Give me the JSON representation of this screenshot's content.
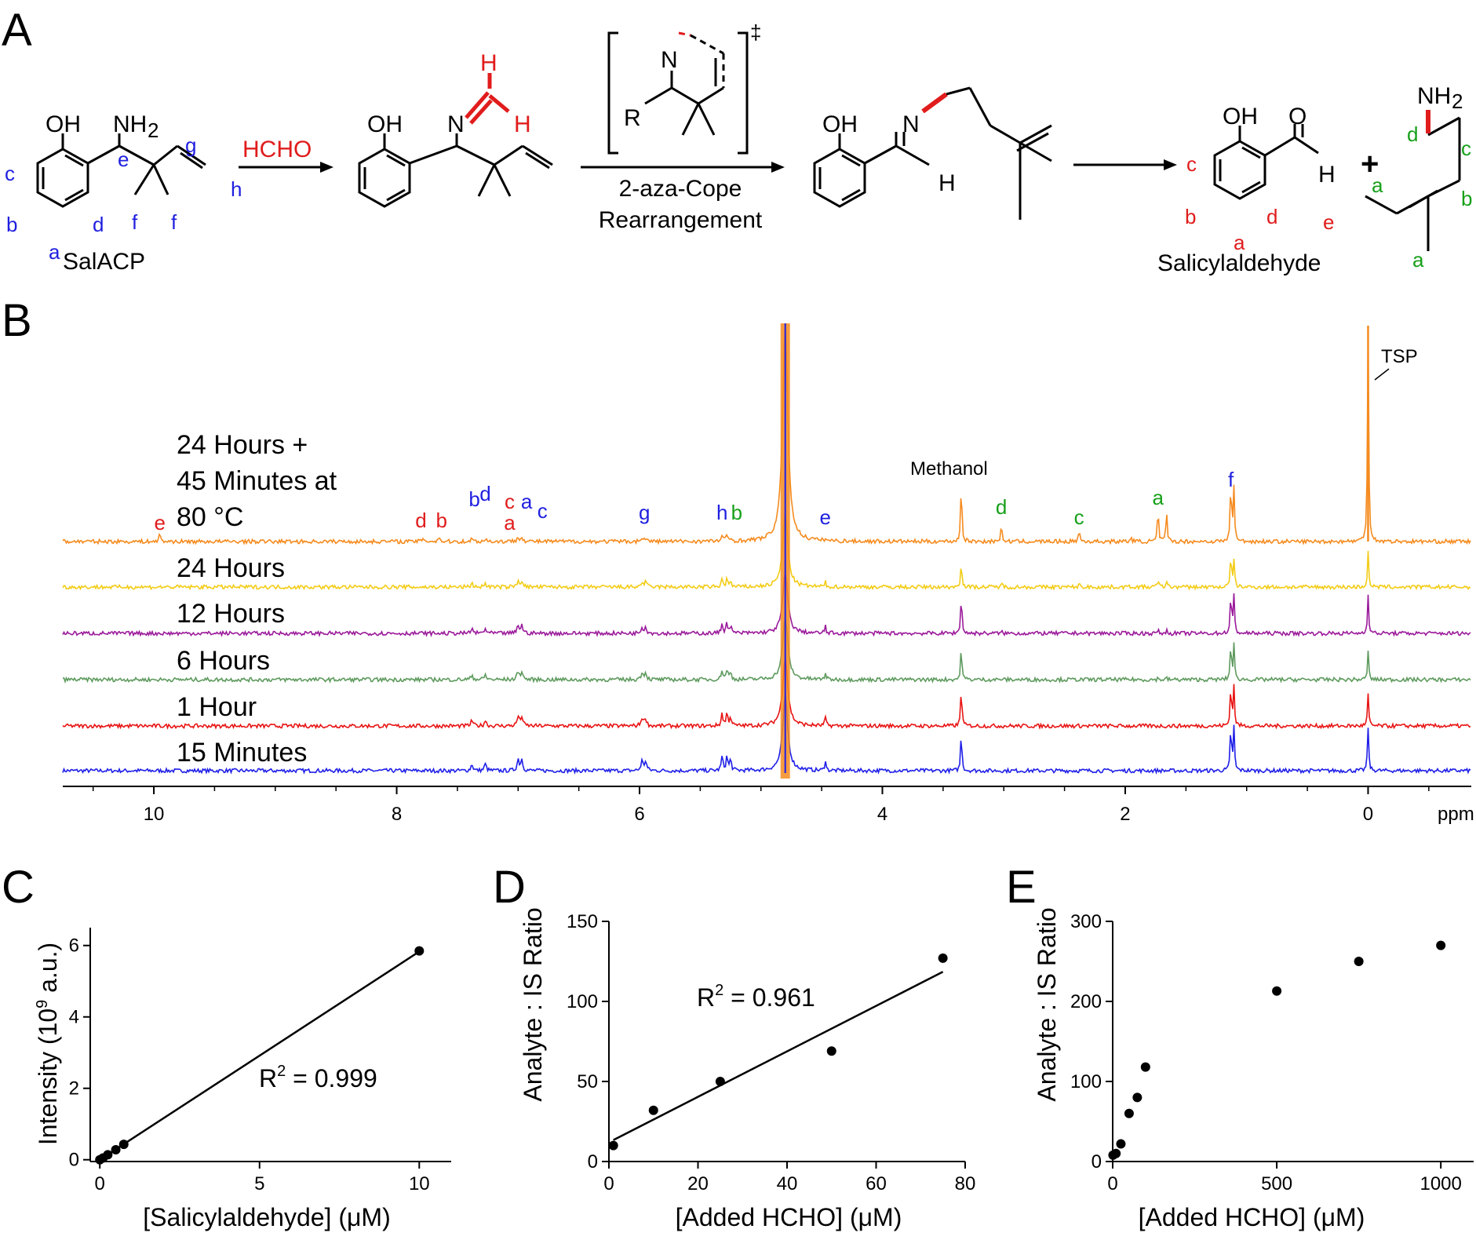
{
  "colors": {
    "blue": "#1f1fe0",
    "red": "#e01c1c",
    "green": "#17a01a",
    "trace_orange": "#f58b1f",
    "trace_yellow": "#f3cc16",
    "trace_purple": "#9b1a9b",
    "trace_green": "#5e9a5e",
    "trace_red": "#e81414",
    "trace_blue": "#1f1fe8"
  },
  "panelA": {
    "letter": "A",
    "hcho": "HCHO",
    "step_label_1": "2-aza-Cope",
    "step_label_2": "Rearrangement",
    "dagger": "‡",
    "salacp": "SalACP",
    "salicylaldehyde": "Salicylaldehyde",
    "plus": "+",
    "atoms": {
      "oh": "OH",
      "nh2_main": "NH",
      "nh2_sub": "2",
      "n": "N",
      "h": "H",
      "o": "O",
      "r": "R"
    },
    "position_letters": {
      "a": "a",
      "b": "b",
      "c": "c",
      "d": "d",
      "e": "e",
      "f": "f",
      "g": "g",
      "h": "h"
    }
  },
  "panelB": {
    "letter": "B",
    "x_unit": "ppm",
    "x_ticks": [
      "10",
      "8",
      "6",
      "4",
      "2",
      "0"
    ],
    "x_range_ppm": [
      10.75,
      -0.85
    ],
    "annotations": {
      "methanol": "Methanol",
      "tsp": "TSP"
    },
    "trace_labels": [
      "24 Hours +",
      "45 Minutes at",
      "80 °C",
      "24 Hours",
      "12 Hours",
      "6 Hours",
      "1 Hour",
      "15 Minutes"
    ],
    "peak_labels": [
      {
        "text": "e",
        "ppm": 9.95,
        "color": "red"
      },
      {
        "text": "d",
        "ppm": 7.8,
        "color": "red"
      },
      {
        "text": "b",
        "ppm": 7.63,
        "color": "red"
      },
      {
        "text": "b",
        "ppm": 7.36,
        "color": "blue"
      },
      {
        "text": "d",
        "ppm": 7.27,
        "color": "blue"
      },
      {
        "text": "c",
        "ppm": 7.07,
        "color": "red"
      },
      {
        "text": "a",
        "ppm": 7.07,
        "color": "red"
      },
      {
        "text": "a",
        "ppm": 6.93,
        "color": "blue"
      },
      {
        "text": "c",
        "ppm": 6.8,
        "color": "blue"
      },
      {
        "text": "g",
        "ppm": 5.96,
        "color": "blue"
      },
      {
        "text": "h",
        "ppm": 5.32,
        "color": "blue"
      },
      {
        "text": "b",
        "ppm": 5.2,
        "color": "green"
      },
      {
        "text": "e",
        "ppm": 4.47,
        "color": "blue"
      },
      {
        "text": "d",
        "ppm": 3.02,
        "color": "green"
      },
      {
        "text": "c",
        "ppm": 2.38,
        "color": "green"
      },
      {
        "text": "a",
        "ppm": 1.73,
        "color": "green"
      },
      {
        "text": "f",
        "ppm": 1.13,
        "color": "blue"
      }
    ]
  },
  "chart_data": [
    {
      "panel": "C",
      "type": "scatter",
      "title": "",
      "xlabel": "[Salicylaldehyde] (μM)",
      "ylabel_main": "Intensity (10",
      "ylabel_sup": "9",
      "ylabel_tail": " a.u.)",
      "xlim": [
        -0.3,
        11
      ],
      "ylim": [
        -0.05,
        6.5
      ],
      "x_ticks": [
        "0",
        "5",
        "10"
      ],
      "y_ticks": [
        "0",
        "2",
        "4",
        "6"
      ],
      "x": [
        0,
        0.1,
        0.25,
        0.5,
        0.75,
        10
      ],
      "y": [
        0.0,
        0.05,
        0.14,
        0.28,
        0.43,
        5.85
      ],
      "fit": {
        "slope": 0.583,
        "intercept": 0.0
      },
      "r2_label": "R",
      "r2_sup": "2",
      "r2_value": " = 0.999"
    },
    {
      "panel": "D",
      "type": "scatter",
      "title": "",
      "xlabel": "[Added HCHO] (μM)",
      "ylabel": "Analyte : IS Ratio",
      "xlim": [
        0,
        80
      ],
      "ylim": [
        0,
        150
      ],
      "x_ticks": [
        "0",
        "20",
        "40",
        "60",
        "80"
      ],
      "y_ticks": [
        "0",
        "50",
        "100",
        "150"
      ],
      "x": [
        1,
        10,
        25,
        50,
        75
      ],
      "y": [
        10,
        32,
        50,
        69,
        127
      ],
      "fit": {
        "slope": 1.42,
        "intercept": 12
      },
      "r2_label": "R",
      "r2_sup": "2",
      "r2_value": " = 0.961"
    },
    {
      "panel": "E",
      "type": "scatter",
      "title": "",
      "xlabel": "[Added HCHO] (μM)",
      "ylabel": "Analyte : IS Ratio",
      "xlim": [
        0,
        1100
      ],
      "ylim": [
        0,
        300
      ],
      "x_ticks": [
        "0",
        "500",
        "1000"
      ],
      "y_ticks": [
        "0",
        "100",
        "200",
        "300"
      ],
      "x": [
        1,
        10,
        25,
        50,
        75,
        100,
        500,
        750,
        1000
      ],
      "y": [
        8,
        10,
        22,
        60,
        80,
        118,
        213,
        250,
        270
      ]
    }
  ]
}
